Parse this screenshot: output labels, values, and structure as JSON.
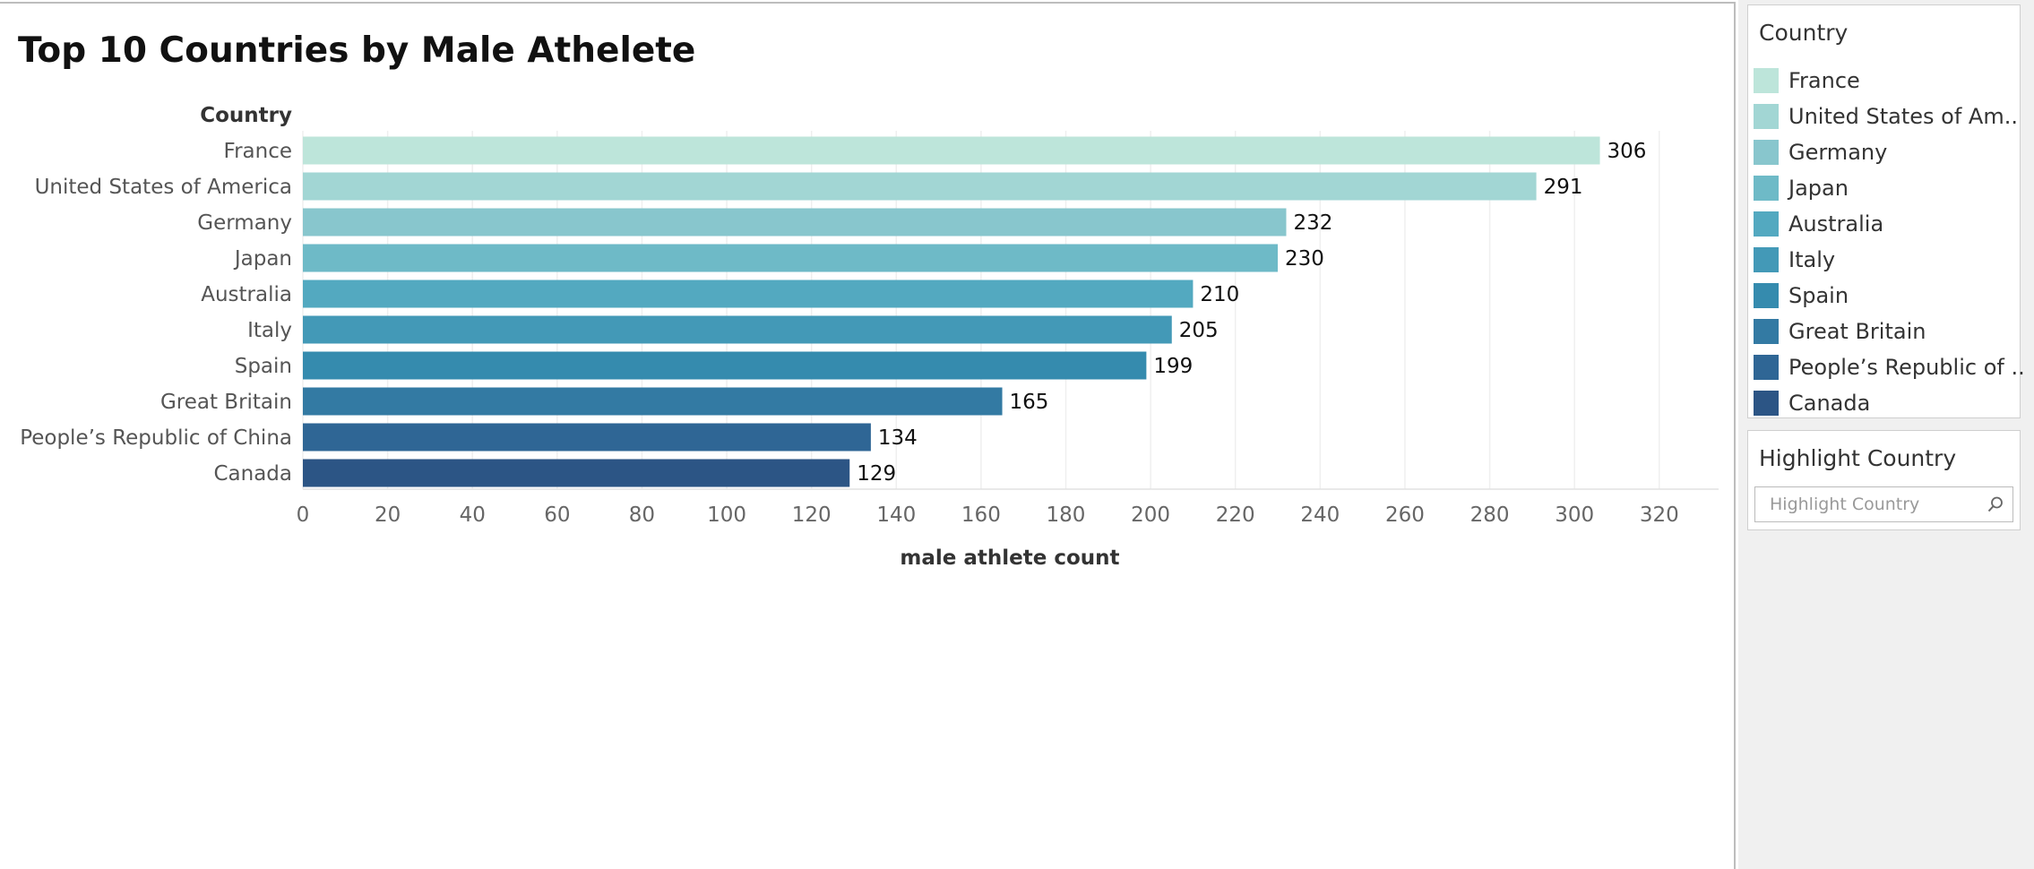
{
  "chart_data": {
    "type": "bar",
    "orientation": "horizontal",
    "title": "Top 10 Countries by Male Athelete",
    "ylabel": "Country",
    "xlabel": "male athlete count",
    "categories": [
      "France",
      "United States of America",
      "Germany",
      "Japan",
      "Australia",
      "Italy",
      "Spain",
      "Great Britain",
      "People’s Republic of China",
      "Canada"
    ],
    "values": [
      306,
      291,
      232,
      230,
      210,
      205,
      199,
      165,
      134,
      129
    ],
    "colors": [
      "#bde5da",
      "#a2d6d4",
      "#88c6cd",
      "#6ebac7",
      "#53a9c0",
      "#4399b7",
      "#358bae",
      "#337aa3",
      "#2f6695",
      "#2c5585"
    ],
    "xlim": [
      0,
      334
    ],
    "xticks": [
      0,
      20,
      40,
      60,
      80,
      100,
      120,
      140,
      160,
      180,
      200,
      220,
      240,
      260,
      280,
      300,
      320
    ],
    "grid": true,
    "data_labels": true,
    "legend_position": "right"
  },
  "legend": {
    "title": "Country",
    "items": [
      {
        "label": "France",
        "color": "#bde5da"
      },
      {
        "label": "United States of Am..",
        "color": "#a2d6d4"
      },
      {
        "label": "Germany",
        "color": "#88c6cd"
      },
      {
        "label": "Japan",
        "color": "#6ebac7"
      },
      {
        "label": "Australia",
        "color": "#53a9c0"
      },
      {
        "label": "Italy",
        "color": "#4399b7"
      },
      {
        "label": "Spain",
        "color": "#358bae"
      },
      {
        "label": "Great Britain",
        "color": "#337aa3"
      },
      {
        "label": "People’s Republic of ..",
        "color": "#2f6695"
      },
      {
        "label": "Canada",
        "color": "#2c5585"
      }
    ]
  },
  "highlight": {
    "title": "Highlight Country",
    "placeholder": "Highlight Country",
    "icon": "search-icon"
  }
}
